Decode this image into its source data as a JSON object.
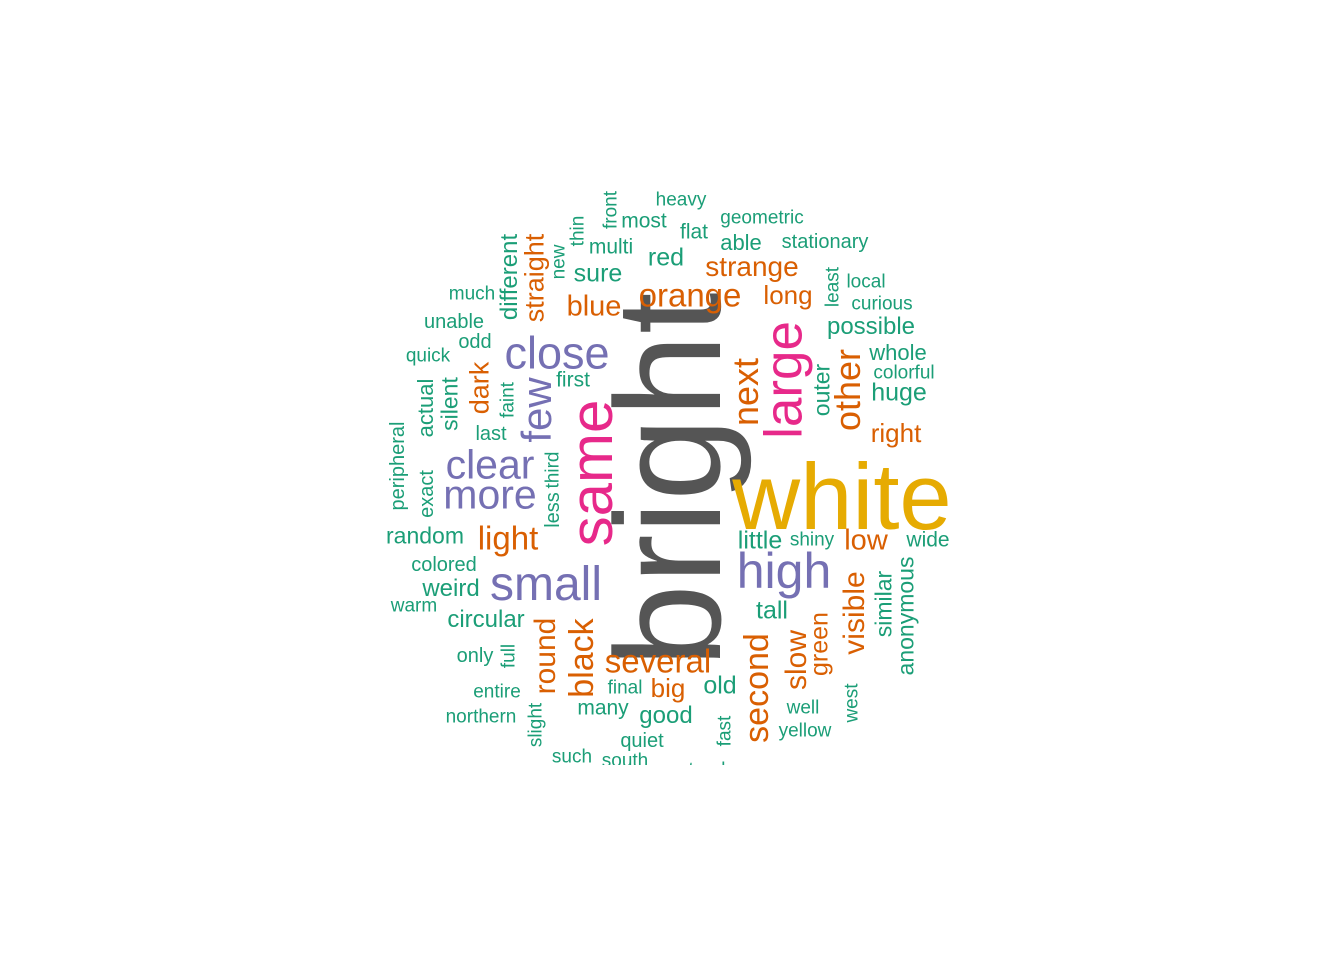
{
  "palette": {
    "teal": "#1b9e77",
    "orange": "#d95f02",
    "purple": "#7570b3",
    "magenta": "#e7298a",
    "gold": "#e6ab02",
    "gray": "#555555"
  },
  "words": [
    {
      "text": "bright",
      "color": "gray",
      "weight": 1.0,
      "rotated": true
    },
    {
      "text": "white",
      "color": "gold",
      "weight": 0.82,
      "rotated": false
    },
    {
      "text": "same",
      "color": "magenta",
      "weight": 0.6,
      "rotated": true
    },
    {
      "text": "large",
      "color": "magenta",
      "weight": 0.52,
      "rotated": true
    },
    {
      "text": "high",
      "color": "purple",
      "weight": 0.5,
      "rotated": false
    },
    {
      "text": "small",
      "color": "purple",
      "weight": 0.48,
      "rotated": false
    },
    {
      "text": "close",
      "color": "purple",
      "weight": 0.45,
      "rotated": false
    },
    {
      "text": "few",
      "color": "purple",
      "weight": 0.44,
      "rotated": true
    },
    {
      "text": "clear",
      "color": "purple",
      "weight": 0.42,
      "rotated": false
    },
    {
      "text": "more",
      "color": "purple",
      "weight": 0.42,
      "rotated": false
    },
    {
      "text": "other",
      "color": "orange",
      "weight": 0.37,
      "rotated": true
    },
    {
      "text": "next",
      "color": "orange",
      "weight": 0.37,
      "rotated": true
    },
    {
      "text": "second",
      "color": "orange",
      "weight": 0.34,
      "rotated": true
    },
    {
      "text": "black",
      "color": "orange",
      "weight": 0.34,
      "rotated": true
    },
    {
      "text": "orange",
      "color": "orange",
      "weight": 0.33,
      "rotated": false
    },
    {
      "text": "several",
      "color": "orange",
      "weight": 0.33,
      "rotated": false
    },
    {
      "text": "light",
      "color": "orange",
      "weight": 0.32,
      "rotated": false
    },
    {
      "text": "round",
      "color": "orange",
      "weight": 0.3,
      "rotated": true
    },
    {
      "text": "visible",
      "color": "orange",
      "weight": 0.3,
      "rotated": true
    },
    {
      "text": "slow",
      "color": "orange",
      "weight": 0.3,
      "rotated": true
    },
    {
      "text": "blue",
      "color": "orange",
      "weight": 0.29,
      "rotated": false
    },
    {
      "text": "low",
      "color": "orange",
      "weight": 0.29,
      "rotated": false
    },
    {
      "text": "strange",
      "color": "orange",
      "weight": 0.28,
      "rotated": false
    },
    {
      "text": "straight",
      "color": "orange",
      "weight": 0.27,
      "rotated": true
    },
    {
      "text": "dark",
      "color": "orange",
      "weight": 0.27,
      "rotated": true
    },
    {
      "text": "long",
      "color": "orange",
      "weight": 0.26,
      "rotated": false
    },
    {
      "text": "right",
      "color": "orange",
      "weight": 0.26,
      "rotated": false
    },
    {
      "text": "big",
      "color": "orange",
      "weight": 0.26,
      "rotated": false
    },
    {
      "text": "green",
      "color": "orange",
      "weight": 0.25,
      "rotated": true
    },
    {
      "text": "red",
      "color": "teal",
      "weight": 0.25,
      "rotated": false
    },
    {
      "text": "sure",
      "color": "teal",
      "weight": 0.25,
      "rotated": false
    },
    {
      "text": "possible",
      "color": "teal",
      "weight": 0.24,
      "rotated": false
    },
    {
      "text": "huge",
      "color": "teal",
      "weight": 0.25,
      "rotated": false
    },
    {
      "text": "little",
      "color": "teal",
      "weight": 0.25,
      "rotated": false
    },
    {
      "text": "tall",
      "color": "teal",
      "weight": 0.25,
      "rotated": false
    },
    {
      "text": "old",
      "color": "teal",
      "weight": 0.25,
      "rotated": false
    },
    {
      "text": "good",
      "color": "teal",
      "weight": 0.24,
      "rotated": false
    },
    {
      "text": "circular",
      "color": "teal",
      "weight": 0.24,
      "rotated": false
    },
    {
      "text": "weird",
      "color": "teal",
      "weight": 0.24,
      "rotated": false
    },
    {
      "text": "random",
      "color": "teal",
      "weight": 0.23,
      "rotated": false
    },
    {
      "text": "different",
      "color": "teal",
      "weight": 0.24,
      "rotated": true
    },
    {
      "text": "outer",
      "color": "teal",
      "weight": 0.23,
      "rotated": true
    },
    {
      "text": "similar",
      "color": "teal",
      "weight": 0.23,
      "rotated": true
    },
    {
      "text": "anonymous",
      "color": "teal",
      "weight": 0.23,
      "rotated": true
    },
    {
      "text": "silent",
      "color": "teal",
      "weight": 0.23,
      "rotated": true
    },
    {
      "text": "actual",
      "color": "teal",
      "weight": 0.22,
      "rotated": true
    },
    {
      "text": "whole",
      "color": "teal",
      "weight": 0.22,
      "rotated": false
    },
    {
      "text": "able",
      "color": "teal",
      "weight": 0.21,
      "rotated": false
    },
    {
      "text": "flat",
      "color": "teal",
      "weight": 0.21,
      "rotated": false
    },
    {
      "text": "most",
      "color": "teal",
      "weight": 0.21,
      "rotated": false
    },
    {
      "text": "multi",
      "color": "teal",
      "weight": 0.21,
      "rotated": false
    },
    {
      "text": "first",
      "color": "teal",
      "weight": 0.21,
      "rotated": false
    },
    {
      "text": "wide",
      "color": "teal",
      "weight": 0.21,
      "rotated": false
    },
    {
      "text": "many",
      "color": "teal",
      "weight": 0.21,
      "rotated": false
    },
    {
      "text": "quiet",
      "color": "teal",
      "weight": 0.2,
      "rotated": false
    },
    {
      "text": "odd",
      "color": "teal",
      "weight": 0.2,
      "rotated": false
    },
    {
      "text": "unable",
      "color": "teal",
      "weight": 0.2,
      "rotated": false
    },
    {
      "text": "stationary",
      "color": "teal",
      "weight": 0.2,
      "rotated": false
    },
    {
      "text": "colored",
      "color": "teal",
      "weight": 0.2,
      "rotated": false
    },
    {
      "text": "last",
      "color": "teal",
      "weight": 0.2,
      "rotated": false
    },
    {
      "text": "only",
      "color": "teal",
      "weight": 0.2,
      "rotated": false
    },
    {
      "text": "less",
      "color": "teal",
      "weight": 0.2,
      "rotated": true
    },
    {
      "text": "peripheral",
      "color": "teal",
      "weight": 0.2,
      "rotated": true
    },
    {
      "text": "exact",
      "color": "teal",
      "weight": 0.2,
      "rotated": true
    },
    {
      "text": "heavy",
      "color": "teal",
      "weight": 0.19,
      "rotated": false
    },
    {
      "text": "geometric",
      "color": "teal",
      "weight": 0.19,
      "rotated": false
    },
    {
      "text": "local",
      "color": "teal",
      "weight": 0.19,
      "rotated": false
    },
    {
      "text": "curious",
      "color": "teal",
      "weight": 0.19,
      "rotated": false
    },
    {
      "text": "colorful",
      "color": "teal",
      "weight": 0.19,
      "rotated": false
    },
    {
      "text": "quick",
      "color": "teal",
      "weight": 0.19,
      "rotated": false
    },
    {
      "text": "much",
      "color": "teal",
      "weight": 0.19,
      "rotated": false
    },
    {
      "text": "shiny",
      "color": "teal",
      "weight": 0.19,
      "rotated": false
    },
    {
      "text": "warm",
      "color": "teal",
      "weight": 0.19,
      "rotated": false
    },
    {
      "text": "entire",
      "color": "teal",
      "weight": 0.19,
      "rotated": false
    },
    {
      "text": "northern",
      "color": "teal",
      "weight": 0.19,
      "rotated": false
    },
    {
      "text": "final",
      "color": "teal",
      "weight": 0.19,
      "rotated": false
    },
    {
      "text": "well",
      "color": "teal",
      "weight": 0.19,
      "rotated": false
    },
    {
      "text": "yellow",
      "color": "teal",
      "weight": 0.19,
      "rotated": false
    },
    {
      "text": "such",
      "color": "teal",
      "weight": 0.19,
      "rotated": false
    },
    {
      "text": "south",
      "color": "teal",
      "weight": 0.19,
      "rotated": false
    },
    {
      "text": "steady",
      "color": "teal",
      "weight": 0.19,
      "rotated": false
    },
    {
      "text": "thin",
      "color": "teal",
      "weight": 0.19,
      "rotated": true
    },
    {
      "text": "front",
      "color": "teal",
      "weight": 0.19,
      "rotated": true
    },
    {
      "text": "new",
      "color": "teal",
      "weight": 0.19,
      "rotated": true
    },
    {
      "text": "least",
      "color": "teal",
      "weight": 0.19,
      "rotated": true
    },
    {
      "text": "faint",
      "color": "teal",
      "weight": 0.19,
      "rotated": true
    },
    {
      "text": "third",
      "color": "teal",
      "weight": 0.19,
      "rotated": true
    },
    {
      "text": "full",
      "color": "teal",
      "weight": 0.19,
      "rotated": true
    },
    {
      "text": "slight",
      "color": "teal",
      "weight": 0.19,
      "rotated": true
    },
    {
      "text": "fast",
      "color": "teal",
      "weight": 0.19,
      "rotated": true
    },
    {
      "text": "west",
      "color": "teal",
      "weight": 0.19,
      "rotated": true
    }
  ]
}
